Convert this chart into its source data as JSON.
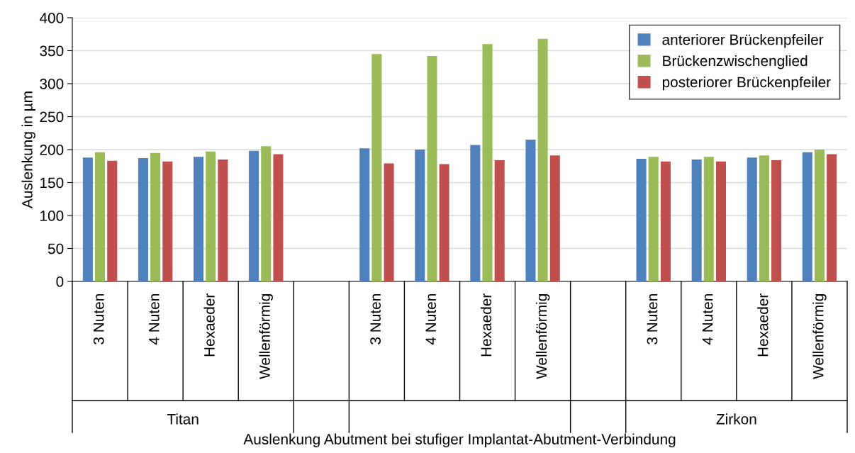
{
  "chart_data": {
    "type": "bar",
    "ylabel": "Auslenkung in µm",
    "xlabel": "Auslenkung Abutment bei stufiger Implantat-Abutment-Verbindung",
    "categories": [
      "3 Nuten",
      "4 Nuten",
      "Hexaeder",
      "Wellenförmig",
      null,
      "3 Nuten",
      "4 Nuten",
      "Hexaeder",
      "Wellenförmig",
      null,
      "3 Nuten",
      "4 Nuten",
      "Hexaeder",
      "Wellenförmig"
    ],
    "series": [
      {
        "name": "anteriorer Brückenpfeiler",
        "color": "#4f81bd",
        "values": [
          188,
          187,
          189,
          198,
          null,
          202,
          200,
          207,
          215,
          null,
          186,
          185,
          188,
          196
        ]
      },
      {
        "name": "Brückenzwischenglied",
        "color": "#9bbb59",
        "values": [
          196,
          195,
          197,
          205,
          null,
          345,
          342,
          360,
          368,
          null,
          189,
          189,
          191,
          200
        ]
      },
      {
        "name": "posteriorer Brückenpfeiler",
        "color": "#c0504d",
        "values": [
          183,
          182,
          185,
          193,
          null,
          179,
          178,
          184,
          191,
          null,
          182,
          182,
          184,
          193
        ]
      }
    ],
    "annotations": [
      "Titan",
      "Zirkon"
    ],
    "ylim": [
      0,
      400
    ],
    "yticks": [
      0,
      50,
      100,
      150,
      200,
      250,
      300,
      350,
      400
    ],
    "grid": "y",
    "legend": "top right"
  }
}
